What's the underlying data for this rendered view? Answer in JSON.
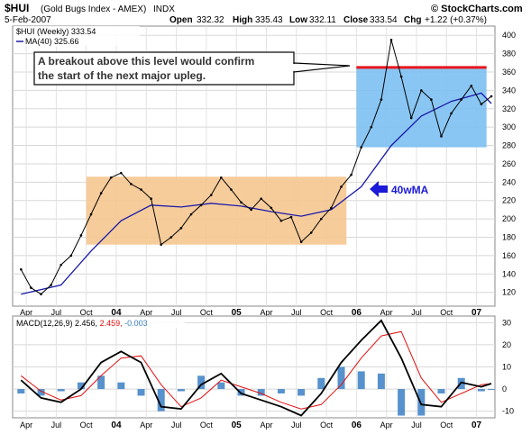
{
  "header": {
    "symbol": "$HUI",
    "name": "(Gold Bugs Index - AMEX)",
    "exchange": "INDX",
    "site": "© StockCharts.com",
    "date": "5-Feb-2007",
    "open_label": "Open",
    "open": "332.32",
    "high_label": "High",
    "high": "335.43",
    "low_label": "Low",
    "low": "332.11",
    "close_label": "Close",
    "close": "333.54",
    "chg_label": "Chg",
    "chg": "+1.22 (+0.37%)"
  },
  "colors": {
    "price": "#000000",
    "ma40": "#1a1aa8",
    "resistance": "#e8141b",
    "upper_range": "#7dc0f2",
    "lower_range": "#f5c690",
    "macd": "#000000",
    "signal": "#e01010",
    "histogram": "#3a7fc4",
    "annotation_arrow": "#1a1ad8"
  },
  "chart_data": [
    {
      "type": "line",
      "series": [
        {
          "name": "$HUI (Weekly) 333.54",
          "x": [
            "2003-03",
            "2003-04",
            "2003-05",
            "2003-06",
            "2003-07",
            "2003-08",
            "2003-09",
            "2003-10",
            "2003-11",
            "2003-12",
            "2004-01",
            "2004-02",
            "2004-03",
            "2004-04",
            "2004-05",
            "2004-06",
            "2004-07",
            "2004-08",
            "2004-09",
            "2004-10",
            "2004-11",
            "2004-12",
            "2005-01",
            "2005-02",
            "2005-03",
            "2005-04",
            "2005-05",
            "2005-06",
            "2005-07",
            "2005-08",
            "2005-09",
            "2005-10",
            "2005-11",
            "2005-12",
            "2006-01",
            "2006-02",
            "2006-03",
            "2006-04",
            "2006-05",
            "2006-06",
            "2006-07",
            "2006-08",
            "2006-09",
            "2006-10",
            "2006-11",
            "2006-12",
            "2007-01",
            "2007-02"
          ],
          "y": [
            145,
            125,
            118,
            128,
            150,
            160,
            182,
            205,
            228,
            245,
            250,
            238,
            232,
            222,
            172,
            180,
            190,
            205,
            215,
            226,
            245,
            232,
            218,
            210,
            222,
            212,
            198,
            202,
            175,
            185,
            200,
            212,
            235,
            248,
            278,
            300,
            330,
            395,
            355,
            310,
            340,
            330,
            290,
            315,
            330,
            345,
            325,
            333.54
          ]
        },
        {
          "name": "MA(40) 325.66",
          "x": [
            "2003-03",
            "2003-07",
            "2003-10",
            "2004-01",
            "2004-04",
            "2004-07",
            "2004-10",
            "2005-01",
            "2005-04",
            "2005-07",
            "2005-10",
            "2006-01",
            "2006-04",
            "2006-07",
            "2006-10",
            "2007-01",
            "2007-02"
          ],
          "y": [
            118,
            128,
            165,
            198,
            215,
            213,
            217,
            214,
            208,
            203,
            210,
            235,
            280,
            312,
            328,
            337,
            325.66
          ]
        }
      ],
      "ylim": [
        105,
        410
      ],
      "y_ticks": [
        120,
        140,
        160,
        180,
        200,
        220,
        240,
        260,
        280,
        300,
        320,
        340,
        360,
        380,
        400
      ],
      "x_tick_labels": [
        "Apr",
        "Jul",
        "Oct",
        "04",
        "Apr",
        "Jul",
        "Oct",
        "05",
        "Apr",
        "Jul",
        "Oct",
        "06",
        "Apr",
        "Jul",
        "Oct",
        "07"
      ],
      "resistance_level": 365,
      "ranges": [
        {
          "from": "2006-01",
          "to": "2007-02",
          "low": 278,
          "high": 365
        },
        {
          "from": "2003-10",
          "to": "2005-12",
          "low": 172,
          "high": 246
        }
      ],
      "annotation": {
        "line1": "A breakout above this level would confirm",
        "line2": "the start of the next major upleg.",
        "ma_label": "40wMA"
      }
    },
    {
      "type": "line",
      "title": "MACD(12,26,9)",
      "values_label": {
        "macd": "2.456",
        "signal": "2.459",
        "hist": "-0.003"
      },
      "ylim": [
        -13,
        33
      ],
      "y_ticks": [
        30,
        20,
        10,
        0,
        -10
      ],
      "series": [
        {
          "name": "MACD",
          "x": [
            "2003-03",
            "2003-05",
            "2003-07",
            "2003-09",
            "2003-11",
            "2004-01",
            "2004-03",
            "2004-05",
            "2004-07",
            "2004-09",
            "2004-11",
            "2005-01",
            "2005-03",
            "2005-05",
            "2005-07",
            "2005-09",
            "2005-11",
            "2006-01",
            "2006-03",
            "2006-05",
            "2006-07",
            "2006-09",
            "2006-11",
            "2007-01",
            "2007-02"
          ],
          "y": [
            4,
            -4,
            -6,
            0,
            12,
            17,
            12,
            -8,
            -9,
            2,
            7,
            -2,
            -5,
            -8,
            -12,
            -2,
            12,
            22,
            31,
            14,
            -7,
            -8,
            3,
            1,
            2.456
          ]
        },
        {
          "name": "Signal",
          "x": [
            "2003-03",
            "2003-05",
            "2003-07",
            "2003-09",
            "2003-11",
            "2004-01",
            "2004-03",
            "2004-05",
            "2004-07",
            "2004-09",
            "2004-11",
            "2005-01",
            "2005-03",
            "2005-05",
            "2005-07",
            "2005-09",
            "2005-11",
            "2006-01",
            "2006-03",
            "2006-05",
            "2006-07",
            "2006-09",
            "2006-11",
            "2007-01",
            "2007-02"
          ],
          "y": [
            6,
            -1,
            -5,
            -3,
            6,
            14,
            15,
            2,
            -8,
            -4,
            4,
            1,
            -2,
            -6,
            -9,
            -7,
            2,
            14,
            24,
            26,
            5,
            -6,
            -2,
            2,
            2.459
          ]
        }
      ]
    }
  ]
}
